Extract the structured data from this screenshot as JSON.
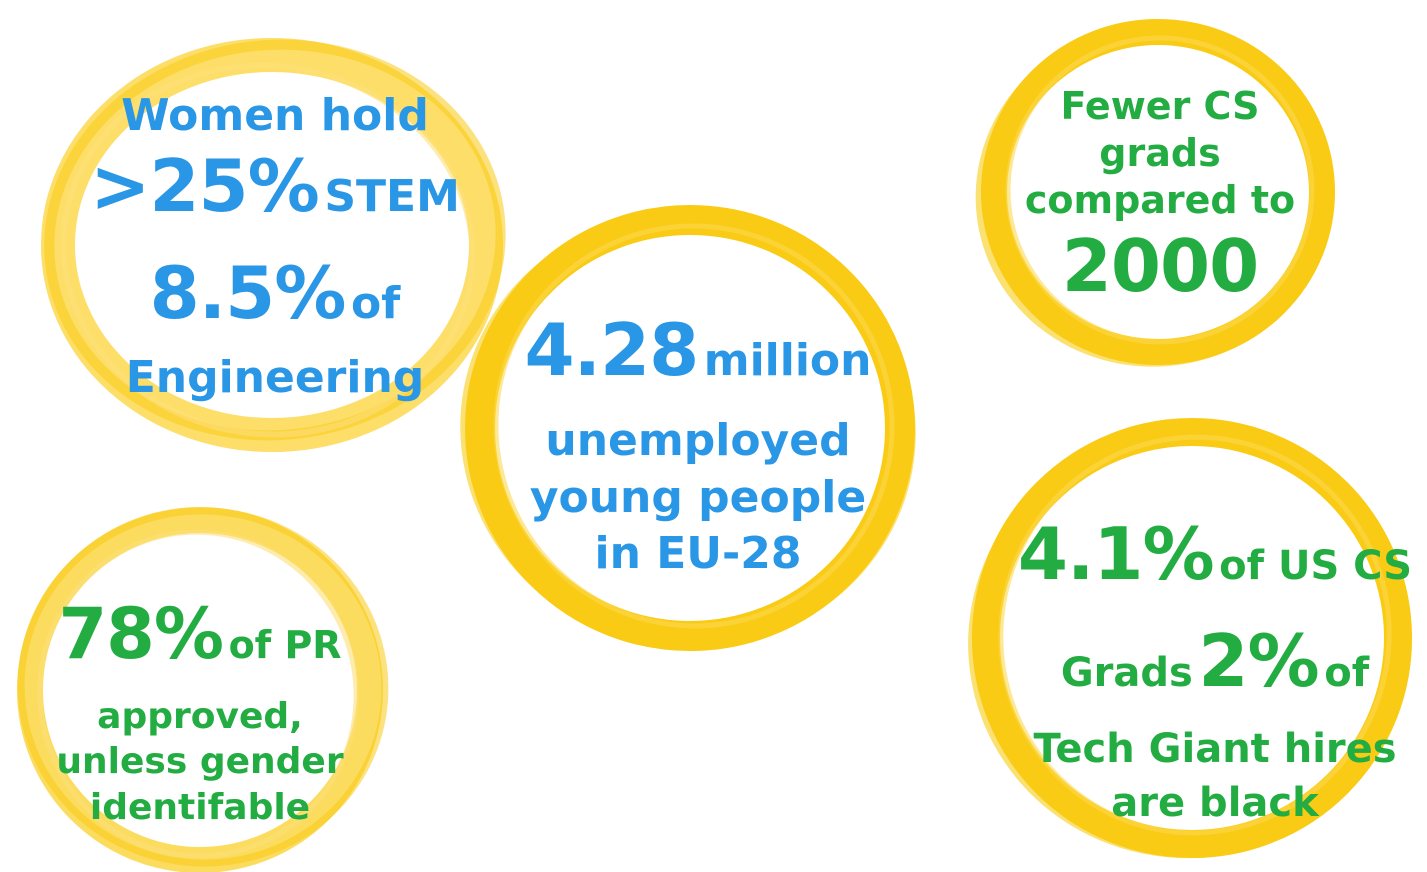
{
  "colors": {
    "ring_yellow": "#f9cb14",
    "ring_yellow_light": "#fbd84e",
    "blue": "#2a96e6",
    "green": "#22ac42"
  },
  "stats": {
    "women": {
      "line1": "Women hold",
      "value1": ">25%",
      "suffix1": "STEM",
      "value2": "8.5%",
      "suffix2": "of",
      "line4": "Engineering"
    },
    "cs_grads": {
      "line1": "Fewer CS",
      "line2": "grads",
      "line3": "compared to",
      "value": "2000"
    },
    "unemployed": {
      "value": "4.28",
      "suffix": "million",
      "line2": "unemployed",
      "line3": "young people",
      "line4": "in EU-28"
    },
    "pr": {
      "value": "78%",
      "suffix": "of PR",
      "line2": "approved,",
      "line3": "unless gender",
      "line4": "identifable"
    },
    "black_hires": {
      "value1": "4.1%",
      "suffix1": "of US CS",
      "prefix2": "Grads",
      "value2": "2%",
      "suffix2": "of",
      "line3": "Tech Giant hires",
      "line4": "are black"
    }
  }
}
